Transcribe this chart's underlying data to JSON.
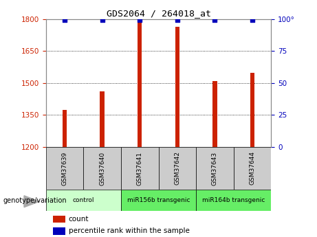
{
  "title": "GDS2064 / 264018_at",
  "samples": [
    "GSM37639",
    "GSM37640",
    "GSM37641",
    "GSM37642",
    "GSM37643",
    "GSM37644"
  ],
  "bar_values": [
    1375,
    1462,
    1793,
    1762,
    1510,
    1548
  ],
  "percentile_values": [
    99,
    99,
    99,
    99,
    99,
    99
  ],
  "ylim_left": [
    1200,
    1800
  ],
  "ylim_right": [
    0,
    100
  ],
  "yticks_left": [
    1200,
    1350,
    1500,
    1650,
    1800
  ],
  "yticks_right": [
    0,
    25,
    50,
    75,
    100
  ],
  "bar_color": "#cc2200",
  "dot_color": "#0000bb",
  "groups": [
    {
      "label": "control",
      "indices": [
        0,
        1
      ],
      "color": "#ccffcc"
    },
    {
      "label": "miR156b transgenic",
      "indices": [
        2,
        3
      ],
      "color": "#66ee66"
    },
    {
      "label": "miR164b transgenic",
      "indices": [
        4,
        5
      ],
      "color": "#66ee66"
    }
  ],
  "legend_count_color": "#cc2200",
  "legend_dot_color": "#0000bb",
  "xlabel_group": "genotype/variation",
  "tick_label_color_left": "#cc2200",
  "tick_label_color_right": "#0000bb",
  "sample_box_color": "#cccccc",
  "bar_width": 0.12
}
